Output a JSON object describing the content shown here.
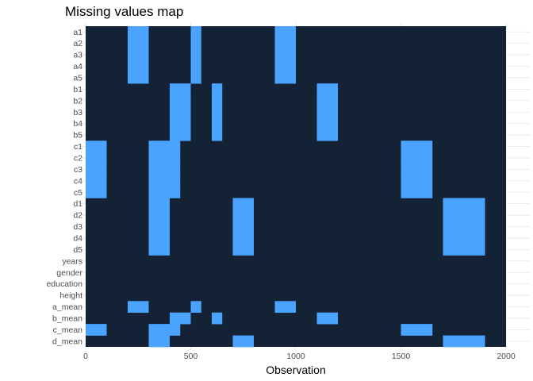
{
  "chart_data": {
    "type": "heatmap",
    "title": "Missing values map",
    "xlabel": "Observation",
    "ylabel": "",
    "xlim": [
      0,
      2000
    ],
    "xticks": [
      0,
      500,
      1000,
      1500,
      2000
    ],
    "grid": true,
    "legend": "none",
    "colors": {
      "present": "#132235",
      "missing": "#4aa3ff",
      "grid": "#e6e6e6"
    },
    "variables": [
      "a1",
      "a2",
      "a3",
      "a4",
      "a5",
      "b1",
      "b2",
      "b3",
      "b4",
      "b5",
      "c1",
      "c2",
      "c3",
      "c4",
      "c5",
      "d1",
      "d2",
      "d3",
      "d4",
      "d5",
      "years",
      "gender",
      "education",
      "height",
      "a_mean",
      "b_mean",
      "c_mean",
      "d_mean"
    ],
    "missing_ranges": {
      "a1": [
        [
          200,
          300
        ],
        [
          500,
          550
        ],
        [
          900,
          1000
        ]
      ],
      "a2": [
        [
          200,
          300
        ],
        [
          500,
          550
        ],
        [
          900,
          1000
        ]
      ],
      "a3": [
        [
          200,
          300
        ],
        [
          500,
          550
        ],
        [
          900,
          1000
        ]
      ],
      "a4": [
        [
          200,
          300
        ],
        [
          500,
          550
        ],
        [
          900,
          1000
        ]
      ],
      "a5": [
        [
          200,
          300
        ],
        [
          500,
          550
        ],
        [
          900,
          1000
        ]
      ],
      "b1": [
        [
          400,
          500
        ],
        [
          600,
          650
        ],
        [
          1100,
          1200
        ]
      ],
      "b2": [
        [
          400,
          500
        ],
        [
          600,
          650
        ],
        [
          1100,
          1200
        ]
      ],
      "b3": [
        [
          400,
          500
        ],
        [
          600,
          650
        ],
        [
          1100,
          1200
        ]
      ],
      "b4": [
        [
          400,
          500
        ],
        [
          600,
          650
        ],
        [
          1100,
          1200
        ]
      ],
      "b5": [
        [
          400,
          500
        ],
        [
          600,
          650
        ],
        [
          1100,
          1200
        ]
      ],
      "c1": [
        [
          0,
          100
        ],
        [
          300,
          450
        ],
        [
          1500,
          1650
        ]
      ],
      "c2": [
        [
          0,
          100
        ],
        [
          300,
          450
        ],
        [
          1500,
          1650
        ]
      ],
      "c3": [
        [
          0,
          100
        ],
        [
          300,
          450
        ],
        [
          1500,
          1650
        ]
      ],
      "c4": [
        [
          0,
          100
        ],
        [
          300,
          450
        ],
        [
          1500,
          1650
        ]
      ],
      "c5": [
        [
          0,
          100
        ],
        [
          300,
          450
        ],
        [
          1500,
          1650
        ]
      ],
      "d1": [
        [
          300,
          400
        ],
        [
          700,
          800
        ],
        [
          1700,
          1900
        ]
      ],
      "d2": [
        [
          300,
          400
        ],
        [
          700,
          800
        ],
        [
          1700,
          1900
        ]
      ],
      "d3": [
        [
          300,
          400
        ],
        [
          700,
          800
        ],
        [
          1700,
          1900
        ]
      ],
      "d4": [
        [
          300,
          400
        ],
        [
          700,
          800
        ],
        [
          1700,
          1900
        ]
      ],
      "d5": [
        [
          300,
          400
        ],
        [
          700,
          800
        ],
        [
          1700,
          1900
        ]
      ],
      "years": [],
      "gender": [],
      "education": [],
      "height": [],
      "a_mean": [
        [
          200,
          300
        ],
        [
          500,
          550
        ],
        [
          900,
          1000
        ]
      ],
      "b_mean": [
        [
          400,
          500
        ],
        [
          600,
          650
        ],
        [
          1100,
          1200
        ]
      ],
      "c_mean": [
        [
          0,
          100
        ],
        [
          300,
          450
        ],
        [
          1500,
          1650
        ]
      ],
      "d_mean": [
        [
          300,
          400
        ],
        [
          700,
          800
        ],
        [
          1700,
          1900
        ]
      ]
    }
  }
}
